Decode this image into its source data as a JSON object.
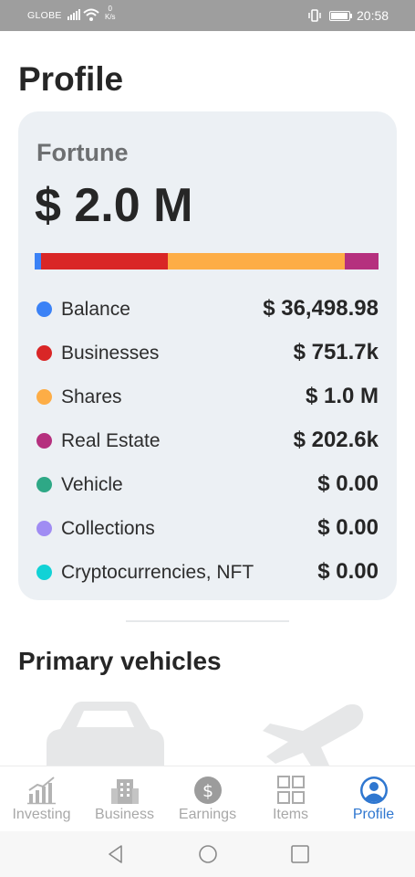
{
  "status_bar": {
    "carrier": "GLOBE",
    "net_speed_value": "0",
    "net_speed_unit": "K/s",
    "time": "20:58"
  },
  "page": {
    "title": "Profile"
  },
  "fortune": {
    "label": "Fortune",
    "total": "$ 2.0 M",
    "bar_segments": [
      {
        "name": "Balance",
        "fraction": 0.018,
        "color": "#3b82f6"
      },
      {
        "name": "Businesses",
        "fraction": 0.37,
        "color": "#d92626"
      },
      {
        "name": "Shares",
        "fraction": 0.515,
        "color": "#fdad46"
      },
      {
        "name": "Real Estate",
        "fraction": 0.097,
        "color": "#b5307e"
      }
    ],
    "assets": [
      {
        "name": "Balance",
        "value": "$ 36,498.98",
        "color": "#3b82f6"
      },
      {
        "name": "Businesses",
        "value": "$ 751.7k",
        "color": "#d92626"
      },
      {
        "name": "Shares",
        "value": "$ 1.0 M",
        "color": "#fdad46"
      },
      {
        "name": "Real Estate",
        "value": "$ 202.6k",
        "color": "#b5307e"
      },
      {
        "name": "Vehicle",
        "value": "$ 0.00",
        "color": "#2ea886"
      },
      {
        "name": "Collections",
        "value": "$ 0.00",
        "color": "#a08cf3"
      },
      {
        "name": "Cryptocurrencies, NFT",
        "value": "$ 0.00",
        "color": "#12d2d6"
      }
    ]
  },
  "primary_vehicles": {
    "title": "Primary vehicles",
    "placeholders": [
      {
        "icon": "car-icon"
      },
      {
        "icon": "airplane-icon"
      }
    ]
  },
  "tab_bar": {
    "tabs": [
      {
        "label": "Investing",
        "icon": "chart-icon",
        "active": false
      },
      {
        "label": "Business",
        "icon": "building-icon",
        "active": false
      },
      {
        "label": "Earnings",
        "icon": "dollar-coin-icon",
        "active": false
      },
      {
        "label": "Items",
        "icon": "grid-icon",
        "active": false
      },
      {
        "label": "Profile",
        "icon": "person-icon",
        "active": true
      }
    ],
    "active_color": "#2f77d0",
    "inactive_color": "#a8a8a8"
  },
  "system_nav": {
    "buttons": [
      "back-icon",
      "home-icon",
      "recents-icon"
    ]
  }
}
